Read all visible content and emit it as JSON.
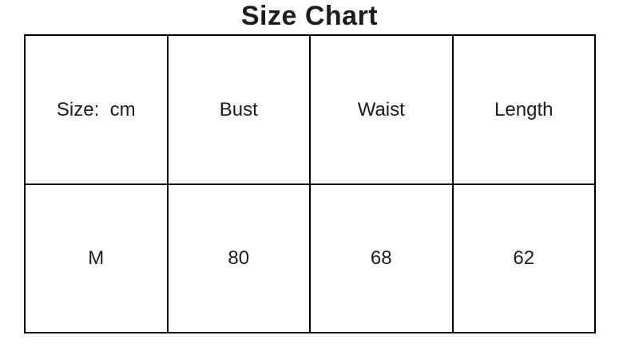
{
  "title": "Size Chart",
  "chart_data": {
    "type": "table",
    "title": "Size Chart",
    "columns": [
      "Size:  cm",
      "Bust",
      "Waist",
      "Length"
    ],
    "rows": [
      {
        "size": "M",
        "bust": "80",
        "waist": "68",
        "length": "62"
      }
    ]
  },
  "colors": {
    "border": "#000000",
    "text": "#1c1c1c",
    "background": "#ffffff"
  }
}
